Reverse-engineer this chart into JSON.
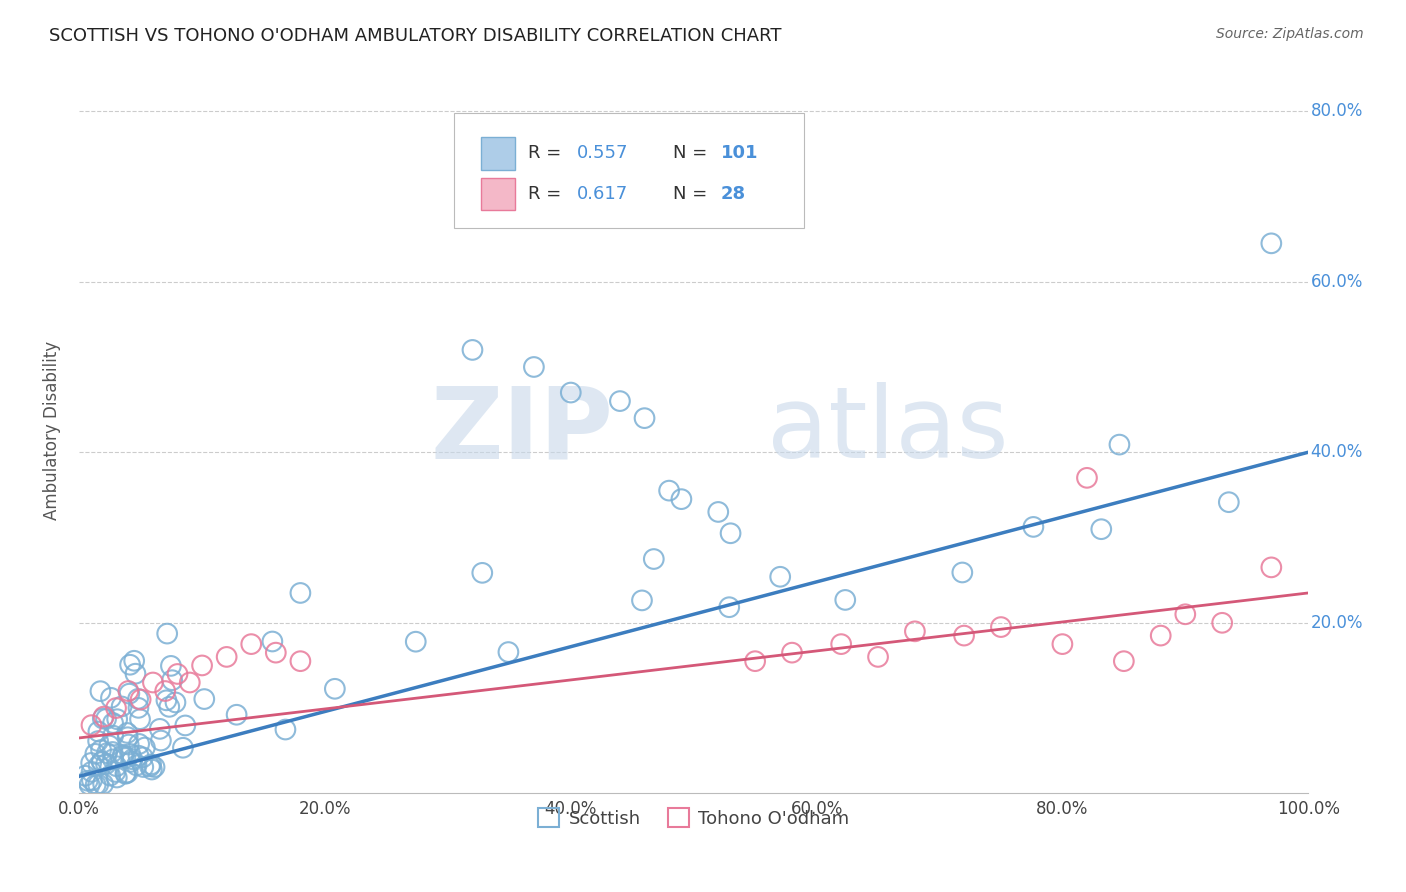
{
  "title": "SCOTTISH VS TOHONO O'ODHAM AMBULATORY DISABILITY CORRELATION CHART",
  "source": "Source: ZipAtlas.com",
  "ylabel": "Ambulatory Disability",
  "xlim": [
    0.0,
    1.0
  ],
  "ylim": [
    0.0,
    0.85
  ],
  "xtick_labels": [
    "0.0%",
    "20.0%",
    "40.0%",
    "60.0%",
    "80.0%",
    "100.0%"
  ],
  "xtick_vals": [
    0.0,
    0.2,
    0.4,
    0.6,
    0.8,
    1.0
  ],
  "ytick_labels": [
    "20.0%",
    "40.0%",
    "60.0%",
    "80.0%"
  ],
  "ytick_vals": [
    0.2,
    0.4,
    0.6,
    0.8
  ],
  "scottish_edge_color": "#7bafd4",
  "tohono_edge_color": "#e87a9a",
  "scottish_line_color": "#3c7dbf",
  "tohono_line_color": "#d45878",
  "legend_text_color": "#333333",
  "legend_value_color": "#4a90d9",
  "R_scottish": 0.557,
  "N_scottish": 101,
  "R_tohono": 0.617,
  "N_tohono": 28,
  "watermark_zip": "ZIP",
  "watermark_atlas": "atlas",
  "background_color": "#ffffff",
  "grid_color": "#cccccc",
  "ytick_color": "#4a90d9",
  "xtick_color": "#444444",
  "scot_line_x0": 0.0,
  "scot_line_y0": 0.02,
  "scot_line_x1": 1.0,
  "scot_line_y1": 0.4,
  "toh_line_x0": 0.0,
  "toh_line_y0": 0.065,
  "toh_line_x1": 1.0,
  "toh_line_y1": 0.235
}
